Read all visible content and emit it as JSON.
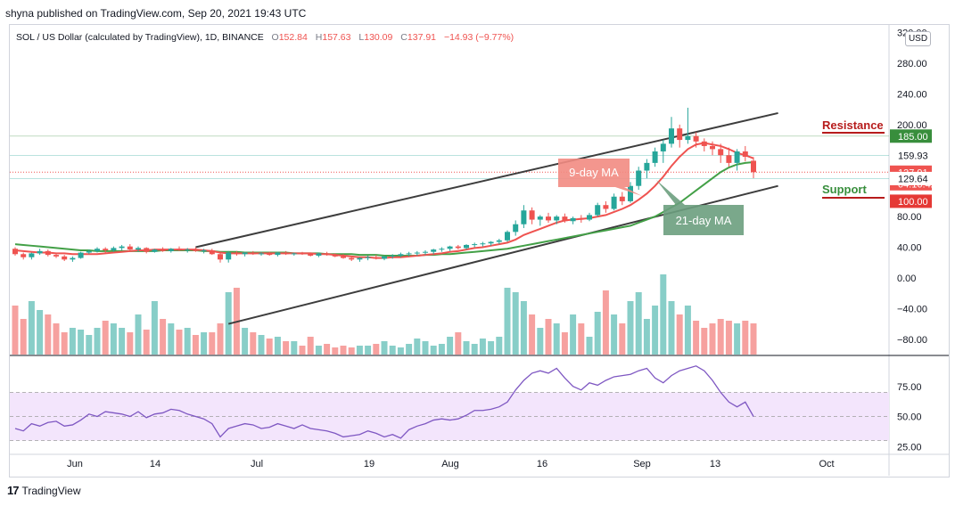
{
  "header": {
    "publish_text": "shyna published on TradingView.com, Sep 20, 2021 19:43 UTC"
  },
  "legend": {
    "symbol": "SOL / US Dollar (calculated by TradingView), 1D, BINANCE",
    "open_label": "O",
    "open": "152.84",
    "high_label": "H",
    "high": "157.63",
    "low_label": "L",
    "low": "130.09",
    "close_label": "C",
    "close": "137.91",
    "change": "−14.93 (−9.77%)"
  },
  "currency": "USD",
  "footer": {
    "brand": "TradingView",
    "logo": "17"
  },
  "colors": {
    "up": "#26a69a",
    "down": "#ef5350",
    "ma9": "#ef5350",
    "ma21": "#43a047",
    "rsi_line": "#7e57c2",
    "rsi_band": "#f3e5fc",
    "support": "#b71c1c",
    "resistance": "#b71c1c",
    "badge_resistance": "#388e3c",
    "badge_close": "#ef5350",
    "badge_100": "#e53935"
  },
  "annotations": {
    "ma9_label": "9-day MA",
    "ma21_label": "21-day MA",
    "resistance_label": "Resistance",
    "support_label": "Support"
  },
  "price_badges": {
    "resistance": "185.00",
    "line_159": "159.93",
    "close": "137.91",
    "countdown": "04:16:42",
    "line_129": "129.64",
    "level_100": "100.00"
  },
  "chart_data": {
    "type": "candlestick",
    "price_axis_ticks": [
      "320.00",
      "280.00",
      "240.00",
      "200.00",
      "160.00",
      "120.00",
      "80.00",
      "40.00",
      "0.00",
      "−40.00",
      "−80.00"
    ],
    "rsi_axis_ticks": [
      "75.00",
      "50.00",
      "25.00"
    ],
    "time_axis_ticks": [
      "Jun",
      "14",
      "Jul",
      "19",
      "Aug",
      "16",
      "Sep",
      "13",
      "Oct"
    ],
    "ylim": [
      -100,
      330
    ],
    "rsi_ylim": [
      20,
      100
    ],
    "rsi_band": [
      30,
      70
    ],
    "candles": [
      [
        38,
        40,
        29,
        31
      ],
      [
        31,
        33,
        24,
        27
      ],
      [
        27,
        33,
        24,
        32
      ],
      [
        32,
        38,
        30,
        35
      ],
      [
        35,
        37,
        28,
        30
      ],
      [
        30,
        33,
        26,
        28
      ],
      [
        28,
        30,
        22,
        24
      ],
      [
        24,
        28,
        21,
        26
      ],
      [
        26,
        34,
        25,
        33
      ],
      [
        33,
        37,
        31,
        35
      ],
      [
        35,
        40,
        33,
        38
      ],
      [
        38,
        40,
        33,
        36
      ],
      [
        36,
        41,
        34,
        39
      ],
      [
        39,
        43,
        36,
        41
      ],
      [
        41,
        44,
        35,
        37
      ],
      [
        37,
        41,
        34,
        39
      ],
      [
        39,
        40,
        32,
        34
      ],
      [
        34,
        38,
        33,
        37
      ],
      [
        37,
        40,
        34,
        35
      ],
      [
        35,
        39,
        33,
        38
      ],
      [
        38,
        41,
        35,
        36
      ],
      [
        36,
        39,
        33,
        37
      ],
      [
        37,
        40,
        34,
        35
      ],
      [
        35,
        38,
        32,
        36
      ],
      [
        36,
        38,
        30,
        31
      ],
      [
        31,
        33,
        20,
        24
      ],
      [
        24,
        35,
        20,
        33
      ],
      [
        33,
        35,
        29,
        31
      ],
      [
        31,
        34,
        28,
        33
      ],
      [
        33,
        35,
        30,
        31
      ],
      [
        31,
        34,
        29,
        32
      ],
      [
        32,
        34,
        29,
        30
      ],
      [
        30,
        34,
        28,
        33
      ],
      [
        33,
        35,
        30,
        31
      ],
      [
        31,
        33,
        29,
        32
      ],
      [
        32,
        34,
        30,
        31
      ],
      [
        31,
        33,
        28,
        29
      ],
      [
        29,
        33,
        27,
        32
      ],
      [
        32,
        34,
        29,
        30
      ],
      [
        30,
        32,
        27,
        28
      ],
      [
        28,
        31,
        25,
        26
      ],
      [
        26,
        28,
        22,
        24
      ],
      [
        24,
        27,
        21,
        26
      ],
      [
        26,
        29,
        23,
        27
      ],
      [
        27,
        30,
        24,
        25
      ],
      [
        25,
        29,
        23,
        28
      ],
      [
        28,
        31,
        25,
        29
      ],
      [
        29,
        33,
        27,
        31
      ],
      [
        31,
        34,
        28,
        32
      ],
      [
        32,
        35,
        29,
        33
      ],
      [
        33,
        36,
        30,
        34
      ],
      [
        34,
        38,
        31,
        37
      ],
      [
        37,
        40,
        34,
        38
      ],
      [
        38,
        42,
        35,
        41
      ],
      [
        41,
        43,
        37,
        39
      ],
      [
        39,
        44,
        37,
        43
      ],
      [
        43,
        46,
        40,
        44
      ],
      [
        44,
        47,
        41,
        45
      ],
      [
        45,
        48,
        42,
        47
      ],
      [
        47,
        51,
        44,
        49
      ],
      [
        49,
        62,
        47,
        60
      ],
      [
        60,
        75,
        55,
        70
      ],
      [
        70,
        95,
        65,
        88
      ],
      [
        88,
        92,
        70,
        76
      ],
      [
        76,
        82,
        68,
        80
      ],
      [
        80,
        85,
        72,
        75
      ],
      [
        75,
        82,
        70,
        80
      ],
      [
        80,
        84,
        72,
        74
      ],
      [
        74,
        80,
        70,
        78
      ],
      [
        78,
        82,
        72,
        76
      ],
      [
        76,
        85,
        74,
        82
      ],
      [
        82,
        98,
        80,
        95
      ],
      [
        95,
        100,
        85,
        90
      ],
      [
        90,
        110,
        88,
        106
      ],
      [
        106,
        112,
        95,
        100
      ],
      [
        100,
        125,
        98,
        120
      ],
      [
        120,
        145,
        115,
        140
      ],
      [
        140,
        155,
        130,
        150
      ],
      [
        150,
        170,
        145,
        165
      ],
      [
        165,
        180,
        150,
        175
      ],
      [
        175,
        210,
        170,
        195
      ],
      [
        195,
        200,
        170,
        180
      ],
      [
        180,
        222,
        175,
        185
      ],
      [
        185,
        190,
        170,
        178
      ],
      [
        178,
        182,
        165,
        172
      ],
      [
        172,
        178,
        160,
        168
      ],
      [
        168,
        175,
        150,
        160
      ],
      [
        160,
        170,
        145,
        150
      ],
      [
        150,
        168,
        140,
        165
      ],
      [
        165,
        172,
        152,
        158
      ],
      [
        152.84,
        157.63,
        130.09,
        137.91
      ]
    ],
    "volume": [
      55,
      40,
      60,
      50,
      45,
      35,
      25,
      30,
      28,
      22,
      30,
      38,
      35,
      30,
      25,
      45,
      28,
      60,
      40,
      35,
      28,
      30,
      22,
      25,
      25,
      35,
      70,
      75,
      30,
      25,
      22,
      18,
      20,
      15,
      15,
      10,
      20,
      10,
      12,
      8,
      10,
      8,
      10,
      10,
      12,
      15,
      10,
      8,
      12,
      18,
      15,
      10,
      12,
      20,
      25,
      15,
      12,
      18,
      15,
      20,
      75,
      70,
      60,
      45,
      30,
      40,
      35,
      25,
      45,
      35,
      20,
      48,
      72,
      45,
      35,
      60,
      70,
      40,
      55,
      90,
      60,
      45,
      55,
      38,
      30,
      35,
      40,
      38,
      35,
      38,
      35
    ],
    "rsi": [
      40,
      38,
      44,
      42,
      45,
      46,
      42,
      43,
      47,
      52,
      50,
      54,
      53,
      52,
      50,
      54,
      49,
      52,
      53,
      56,
      55,
      52,
      50,
      48,
      44,
      33,
      40,
      42,
      44,
      43,
      40,
      41,
      44,
      42,
      40,
      43,
      40,
      39,
      38,
      36,
      33,
      34,
      35,
      38,
      36,
      33,
      35,
      32,
      39,
      42,
      44,
      47,
      48,
      47,
      48,
      51,
      55,
      55,
      56,
      58,
      62,
      72,
      80,
      86,
      88,
      86,
      90,
      82,
      75,
      72,
      78,
      76,
      80,
      83,
      84,
      85,
      88,
      90,
      82,
      78,
      84,
      88,
      90,
      92,
      88,
      80,
      70,
      62,
      58,
      62,
      50
    ],
    "ma9": [
      36,
      35,
      34,
      33,
      33,
      32,
      32,
      31,
      31,
      31,
      31,
      32,
      33,
      34,
      35,
      36,
      36,
      37,
      37,
      37,
      37,
      37,
      37,
      36,
      35,
      33,
      32,
      32,
      32,
      32,
      32,
      32,
      32,
      32,
      32,
      32,
      32,
      31,
      31,
      30,
      29,
      28,
      27,
      27,
      26,
      26,
      27,
      27,
      28,
      29,
      30,
      31,
      32,
      34,
      35,
      37,
      39,
      40,
      42,
      44,
      46,
      50,
      56,
      60,
      64,
      68,
      72,
      75,
      76,
      77,
      78,
      80,
      82,
      86,
      90,
      95,
      102,
      110,
      120,
      132,
      146,
      158,
      168,
      174,
      176,
      174,
      172,
      168,
      163,
      160,
      156
    ],
    "ma21": [
      44,
      43,
      42,
      41,
      40,
      39,
      38,
      37,
      36,
      36,
      35,
      35,
      35,
      35,
      35,
      35,
      35,
      35,
      36,
      36,
      36,
      36,
      36,
      35,
      35,
      34,
      34,
      34,
      33,
      33,
      33,
      33,
      33,
      33,
      32,
      32,
      32,
      32,
      31,
      31,
      31,
      31,
      30,
      30,
      30,
      29,
      29,
      29,
      29,
      29,
      30,
      30,
      31,
      31,
      32,
      33,
      34,
      35,
      36,
      37,
      38,
      40,
      42,
      44,
      46,
      48,
      50,
      52,
      54,
      56,
      58,
      60,
      62,
      64,
      66,
      68,
      72,
      76,
      80,
      86,
      92,
      98,
      106,
      114,
      122,
      130,
      138,
      144,
      148,
      150,
      151
    ],
    "trendlines": [
      {
        "from": [
          22,
          40
        ],
        "to": [
          100,
          215
        ]
      },
      {
        "from": [
          26,
          -60
        ],
        "to": [
          100,
          120
        ]
      }
    ]
  }
}
